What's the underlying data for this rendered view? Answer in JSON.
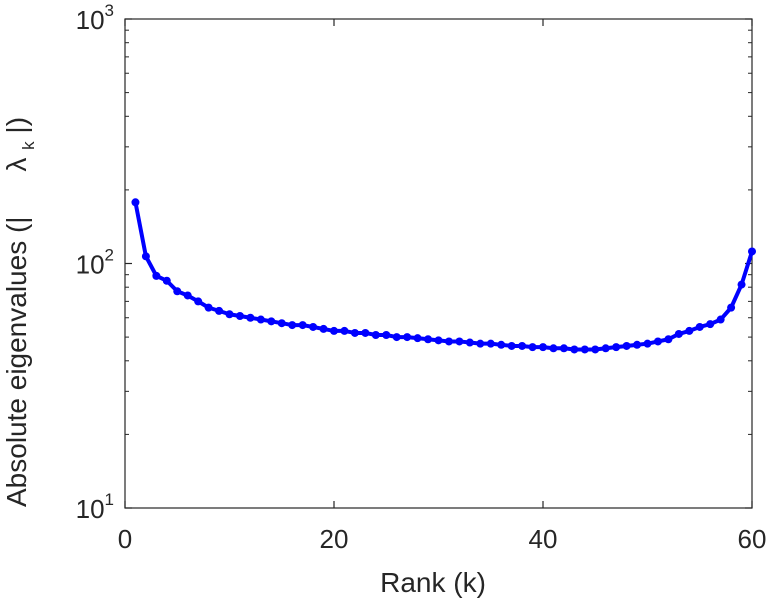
{
  "chart_data": {
    "type": "line",
    "xlabel": "Rank (k)",
    "ylabel": "Absolute eigenvalues (|    λ_k|)",
    "ylabel_parts": {
      "prefix": "Absolute eigenvalues (|",
      "symbol": "λ",
      "subscript": "k",
      "suffix": "|)"
    },
    "yscale": "log",
    "xlim": [
      0,
      60
    ],
    "ylim": [
      10,
      1000
    ],
    "x_ticks": [
      0,
      20,
      40,
      60
    ],
    "x_tick_labels": [
      "0",
      "20",
      "40",
      "60"
    ],
    "y_ticks": [
      10,
      100,
      1000
    ],
    "y_tick_labels": [
      {
        "base": "10",
        "exp": "1"
      },
      {
        "base": "10",
        "exp": "2"
      },
      {
        "base": "10",
        "exp": "3"
      }
    ],
    "grid": false,
    "series": [
      {
        "color": "#0000ff",
        "marker": "circle",
        "x": [
          1,
          2,
          3,
          4,
          5,
          6,
          7,
          8,
          9,
          10,
          11,
          12,
          13,
          14,
          15,
          16,
          17,
          18,
          19,
          20,
          21,
          22,
          23,
          24,
          25,
          26,
          27,
          28,
          29,
          30,
          31,
          32,
          33,
          34,
          35,
          36,
          37,
          38,
          39,
          40,
          41,
          42,
          43,
          44,
          45,
          46,
          47,
          48,
          49,
          50,
          51,
          52,
          53,
          54,
          55,
          56,
          57,
          58,
          59,
          60
        ],
        "values": [
          178,
          107,
          89,
          85,
          77,
          74,
          70,
          66,
          64,
          62,
          61,
          60,
          59,
          58,
          57,
          56,
          56,
          55,
          54,
          53,
          53,
          52,
          52,
          51,
          51,
          50,
          50,
          49.5,
          49,
          48.5,
          48,
          48,
          47.5,
          47,
          47,
          46.5,
          46,
          46,
          45.5,
          45.5,
          45,
          45,
          44.5,
          44.5,
          44.5,
          45,
          45.5,
          46,
          46.5,
          47,
          48,
          49,
          51.5,
          53,
          55,
          56.5,
          59,
          66,
          82,
          112
        ]
      }
    ]
  }
}
